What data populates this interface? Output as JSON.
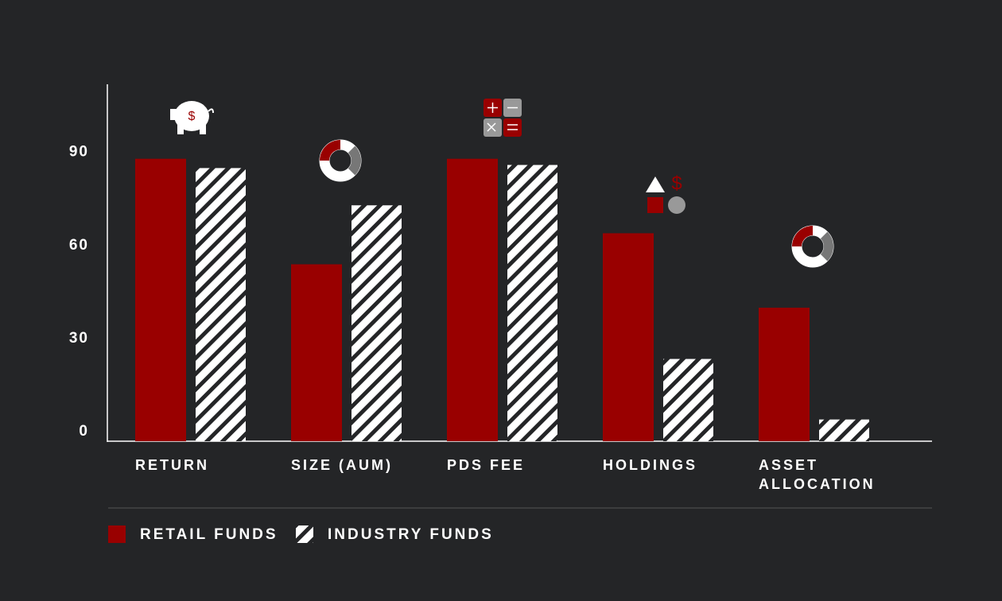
{
  "chart_data": {
    "type": "bar",
    "categories": [
      "RETURN",
      "SIZE (AUM)",
      "PDS FEE",
      "HOLDINGS",
      "ASSET ALLOCATION"
    ],
    "series": [
      {
        "name": "RETAIL FUNDS",
        "color": "#990000",
        "values": [
          91,
          57,
          91,
          67,
          43
        ]
      },
      {
        "name": "INDUSTRY FUNDS",
        "color": "#ffffff",
        "hatch": true,
        "values": [
          88,
          76,
          89,
          26.5,
          7
        ]
      }
    ],
    "ylim": [
      0,
      115
    ],
    "yticks": [
      0,
      30,
      60,
      90
    ],
    "grid": false
  }
}
